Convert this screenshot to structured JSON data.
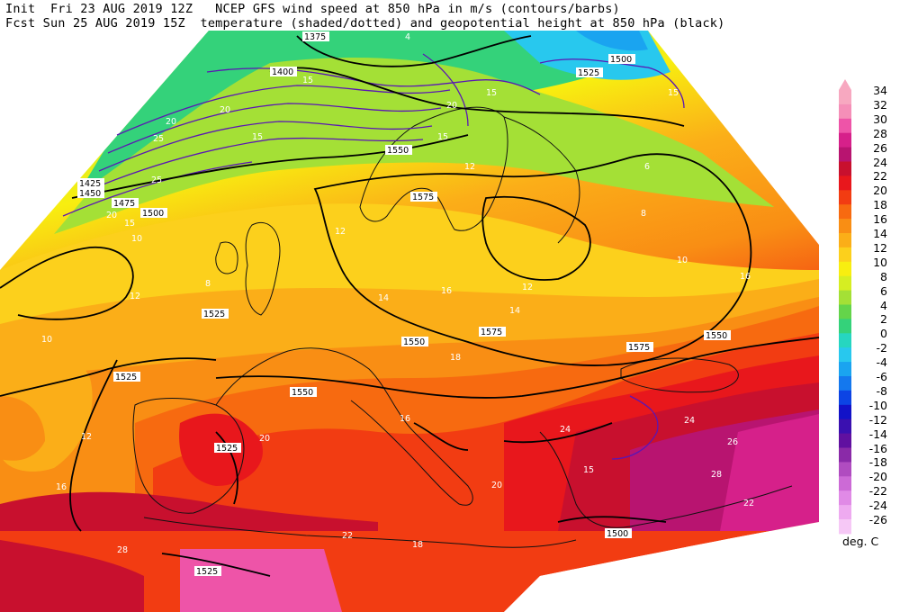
{
  "header": {
    "line1": "Init  Fri 23 AUG 2019 12Z   NCEP GFS wind speed at 850 hPa in m/s (contours/barbs)",
    "line2": "Fcst Sun 25 AUG 2019 15Z  temperature (shaded/dotted) and geopotential height at 850 hPa (black)"
  },
  "colorbar": {
    "unit": "deg. C",
    "levels": [
      {
        "label": "34",
        "color": "#f7a8c0"
      },
      {
        "label": "32",
        "color": "#f58fb8"
      },
      {
        "label": "30",
        "color": "#ee54a8"
      },
      {
        "label": "28",
        "color": "#d6208a"
      },
      {
        "label": "26",
        "color": "#b81470"
      },
      {
        "label": "24",
        "color": "#c8102e"
      },
      {
        "label": "22",
        "color": "#e8171c"
      },
      {
        "label": "20",
        "color": "#f23c12"
      },
      {
        "label": "18",
        "color": "#f76a10"
      },
      {
        "label": "16",
        "color": "#f98e14"
      },
      {
        "label": "14",
        "color": "#fbae18"
      },
      {
        "label": "12",
        "color": "#fcd01c"
      },
      {
        "label": "10",
        "color": "#f8ee10"
      },
      {
        "label": "8",
        "color": "#d6ee22"
      },
      {
        "label": "6",
        "color": "#a4e036"
      },
      {
        "label": "4",
        "color": "#64d44a"
      },
      {
        "label": "2",
        "color": "#34d27a"
      },
      {
        "label": "0",
        "color": "#26d6c0"
      },
      {
        "label": "-2",
        "color": "#28c8ee"
      },
      {
        "label": "-4",
        "color": "#1aa4f0"
      },
      {
        "label": "-6",
        "color": "#1478ee"
      },
      {
        "label": "-8",
        "color": "#0c44e4"
      },
      {
        "label": "-10",
        "color": "#1212c8"
      },
      {
        "label": "-12",
        "color": "#3a10b0"
      },
      {
        "label": "-14",
        "color": "#6010a0"
      },
      {
        "label": "-16",
        "color": "#8a2aa8"
      },
      {
        "label": "-18",
        "color": "#b04cc0"
      },
      {
        "label": "-20",
        "color": "#cc6ad6"
      },
      {
        "label": "-22",
        "color": "#e08ae6"
      },
      {
        "label": "-24",
        "color": "#eeaaf0"
      },
      {
        "label": "-26",
        "color": "#f6c8f6"
      }
    ]
  },
  "height_labels": [
    "1375",
    "1400",
    "1425",
    "1450",
    "1475",
    "1500",
    "1525",
    "1550",
    "1575",
    "1500",
    "1525",
    "1550",
    "1575",
    "1525",
    "1550",
    "1525",
    "1500",
    "1525",
    "1550",
    "1575"
  ],
  "wind_labels": [
    "15",
    "20",
    "25",
    "15",
    "20",
    "15",
    "15",
    "20",
    "25",
    "15",
    "15",
    "20",
    "15"
  ],
  "temp_labels": [
    "4",
    "6",
    "8",
    "8",
    "10",
    "10",
    "12",
    "12",
    "12",
    "14",
    "14",
    "16",
    "16",
    "16",
    "18",
    "18",
    "20",
    "20",
    "22",
    "22",
    "24",
    "24",
    "26",
    "28",
    "28",
    "10",
    "12",
    "12",
    "16"
  ]
}
